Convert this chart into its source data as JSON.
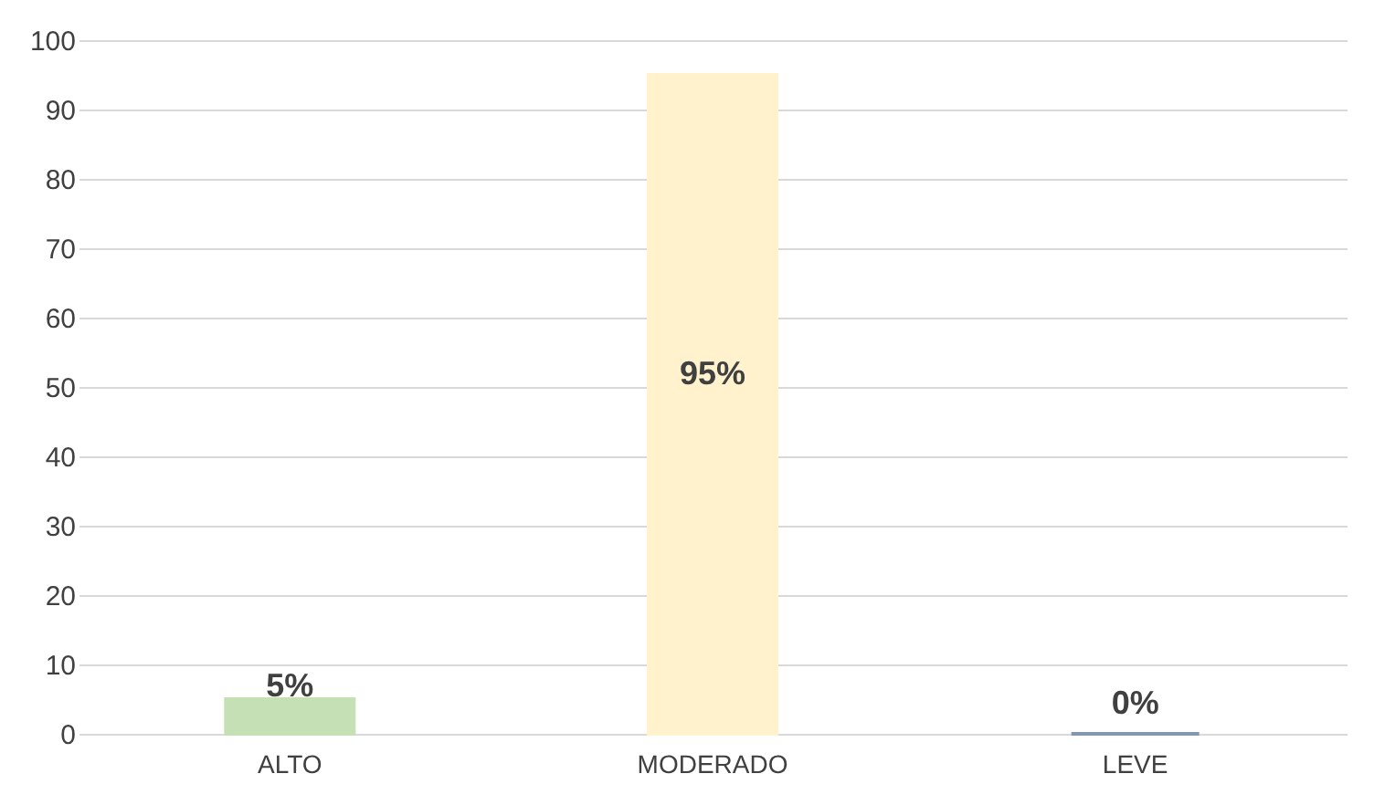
{
  "chart_data": {
    "type": "bar",
    "categories": [
      "ALTO",
      "MODERADO",
      "LEVE"
    ],
    "values": [
      5,
      95,
      0
    ],
    "colors": [
      "#c5e0b4",
      "#fff2cc",
      "#8497b0"
    ],
    "value_labels": [
      "5%",
      "95%",
      "0%"
    ],
    "ylim": [
      0,
      100
    ],
    "yticks": [
      0,
      10,
      20,
      30,
      40,
      50,
      60,
      70,
      80,
      90,
      100
    ],
    "grid": "y"
  }
}
